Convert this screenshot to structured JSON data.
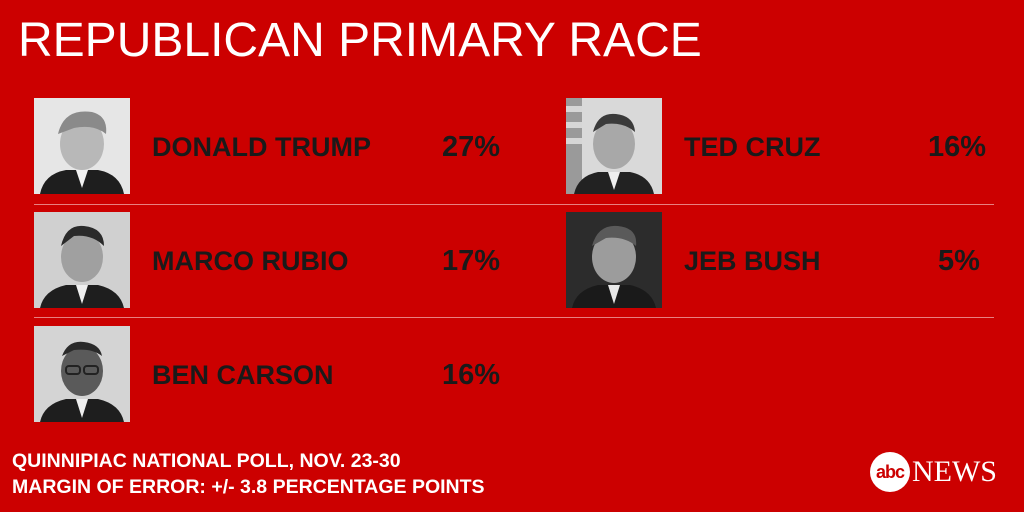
{
  "title": "REPUBLICAN PRIMARY RACE",
  "candidates": [
    {
      "name": "DONALD TRUMP",
      "pct": "27%"
    },
    {
      "name": "TED CRUZ",
      "pct": "16%"
    },
    {
      "name": "MARCO RUBIO",
      "pct": "17%"
    },
    {
      "name": "JEB BUSH",
      "pct": "5%"
    },
    {
      "name": "BEN CARSON",
      "pct": "16%"
    }
  ],
  "footer": {
    "line1": "QUINNIPIAC NATIONAL POLL, NOV. 23-30",
    "line2": "MARGIN OF ERROR: +/- 3.8 PERCENTAGE POINTS"
  },
  "logo": {
    "abc": "abc",
    "news": "NEWS"
  },
  "colors": {
    "background": "#cc0000",
    "text_dark": "#1a1a1a",
    "text_light": "#ffffff"
  }
}
